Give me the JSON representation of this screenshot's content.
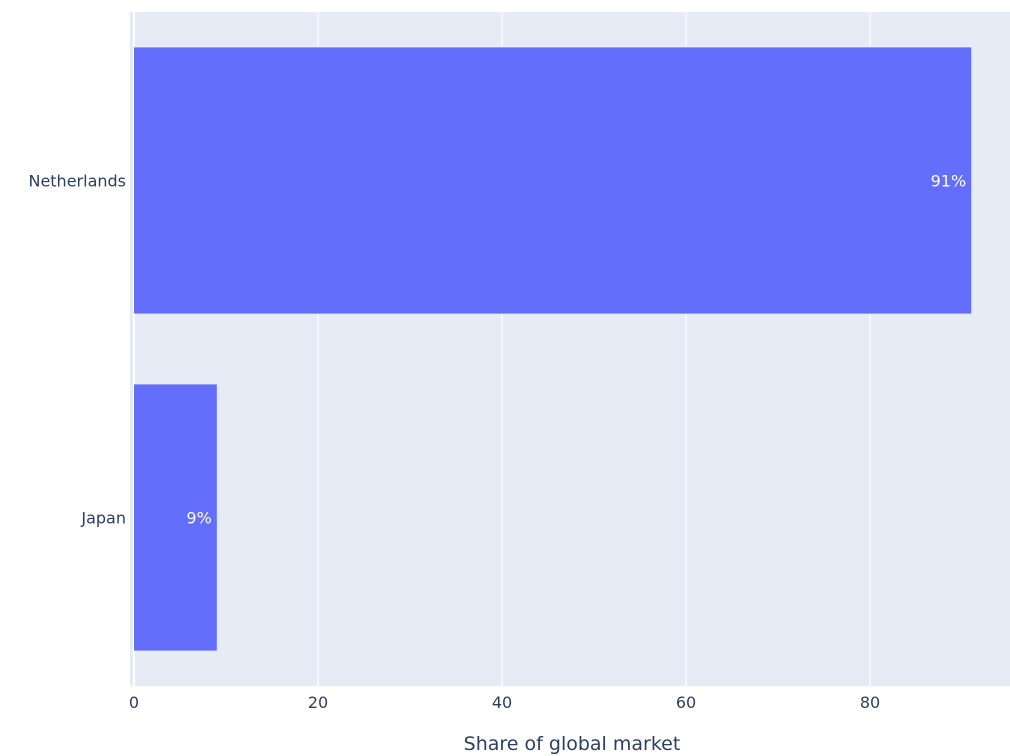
{
  "chart_data": {
    "type": "bar",
    "orientation": "horizontal",
    "categories": [
      "Netherlands",
      "Japan"
    ],
    "values": [
      91,
      9
    ],
    "data_labels": [
      "91%",
      "9%"
    ],
    "xlabel": "Share of global market",
    "ylabel": "",
    "xlim": [
      0,
      95
    ],
    "xticks": [
      0,
      20,
      40,
      60,
      80
    ],
    "xtick_labels": [
      "0",
      "20",
      "40",
      "60",
      "80"
    ],
    "grid": true,
    "colors": {
      "bar": "#636efa",
      "plot_background": "#e5ecf6",
      "grid": "#ffffff",
      "text": "#2a3f5f",
      "data_label": "#ffffff"
    }
  }
}
